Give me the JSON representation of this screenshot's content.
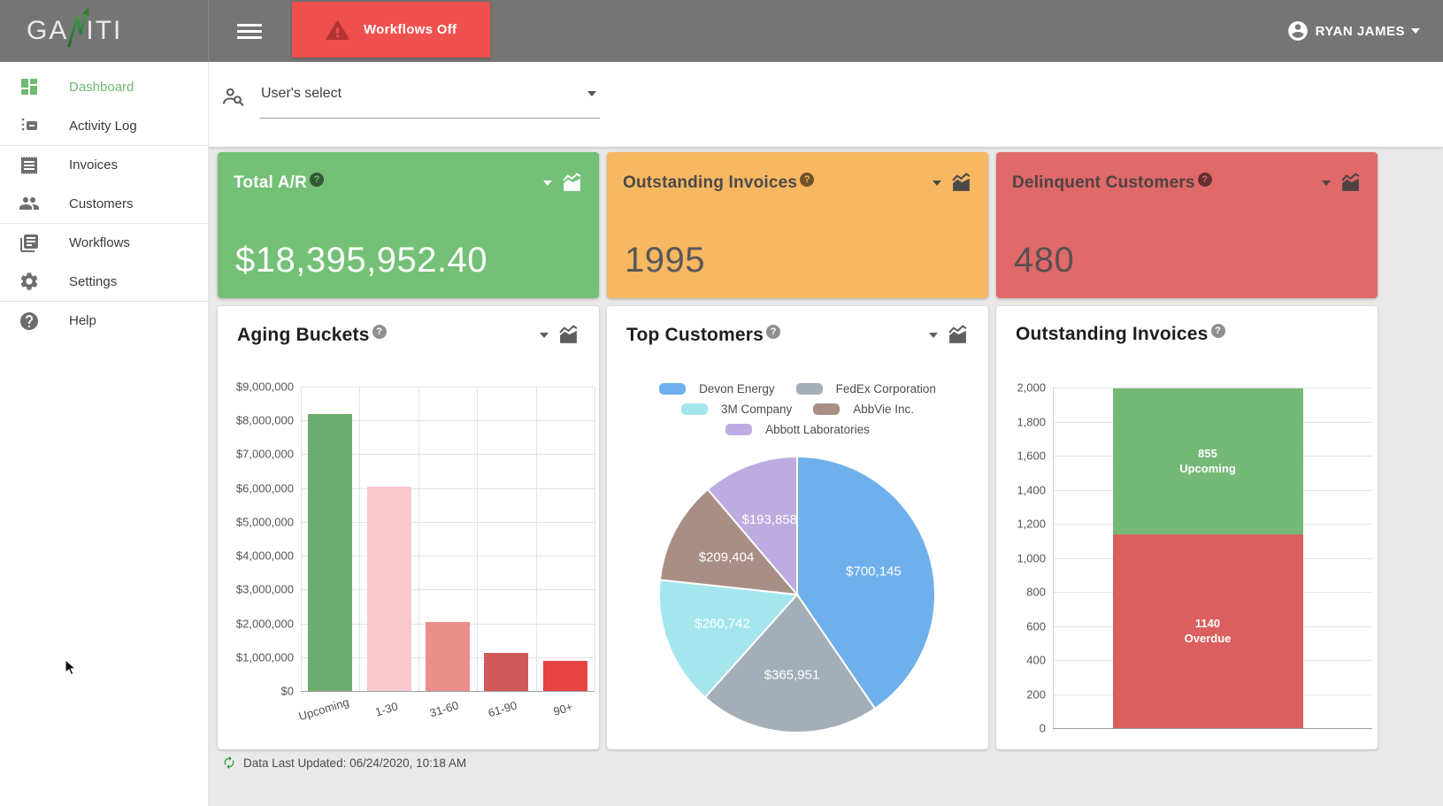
{
  "topbar": {
    "logo": {
      "left": "GA",
      "right": "ITI"
    },
    "workflows_label": "Workflows Off",
    "user_name": "RYAN JAMES"
  },
  "sidebar": {
    "active_color": "#6fbb72",
    "items": [
      {
        "label": "Dashboard",
        "icon": "dashboard-icon",
        "active": true,
        "divider_above": false
      },
      {
        "label": "Activity Log",
        "icon": "activity-log-icon",
        "active": false,
        "divider_above": false
      },
      {
        "label": "Invoices",
        "icon": "invoices-icon",
        "active": false,
        "divider_above": true
      },
      {
        "label": "Customers",
        "icon": "customers-icon",
        "active": false,
        "divider_above": false
      },
      {
        "label": "Workflows",
        "icon": "workflows-icon",
        "active": false,
        "divider_above": true
      },
      {
        "label": "Settings",
        "icon": "settings-icon",
        "active": false,
        "divider_above": false
      },
      {
        "label": "Help",
        "icon": "help-icon",
        "active": false,
        "divider_above": true
      }
    ]
  },
  "filters": {
    "user_select_label": "User's select"
  },
  "kpis": [
    {
      "title": "Total A/R",
      "value": "$18,395,952.40",
      "bg": "#73c076",
      "title_color": "#ffffff",
      "value_color": "#ffffff",
      "icon_color": "#ffffff"
    },
    {
      "title": "Outstanding Invoices",
      "value": "1995",
      "bg": "#f8b761",
      "title_color": "#4a4a4a",
      "value_color": "#585858",
      "icon_color": "#4a4a4a"
    },
    {
      "title": "Delinquent Customers",
      "value": "480",
      "bg": "#e0696a",
      "title_color": "#4f4342",
      "value_color": "#5a4f4e",
      "icon_color": "#4f4342"
    }
  ],
  "footer": {
    "last_updated": "Data Last Updated: 06/24/2020, 10:18 AM"
  },
  "chart_data": [
    {
      "type": "bar",
      "title": "Aging Buckets",
      "categories": [
        "Upcoming",
        "1-30",
        "31-60",
        "61-90",
        "90+"
      ],
      "values": [
        8200000,
        6050000,
        2050000,
        1130000,
        880000
      ],
      "bar_colors": [
        "#6cac6e",
        "#f9c9cf",
        "#e98e8b",
        "#d05a59",
        "#e54442"
      ],
      "ylim": [
        0,
        9000000
      ],
      "ytick_step": 1000000,
      "ytick_prefix": "$",
      "grid": true,
      "has_menu_icons": true
    },
    {
      "type": "pie",
      "title": "Top Customers",
      "legend_position": "top",
      "has_menu_icons": true,
      "series": [
        {
          "name": "Devon Energy",
          "value": 700145,
          "label": "$700,145",
          "color": "#6fb0ec"
        },
        {
          "name": "FedEx Corporation",
          "value": 365951,
          "label": "$365,951",
          "color": "#a3aeb9"
        },
        {
          "name": "3M Company",
          "value": 260742,
          "label": "$260,742",
          "color": "#a5e6ee"
        },
        {
          "name": "AbbVie Inc.",
          "value": 209404,
          "label": "$209,404",
          "color": "#a88e84"
        },
        {
          "name": "Abbott Laboratories",
          "value": 193858,
          "label": "$193,858",
          "color": "#bdacdf"
        }
      ]
    },
    {
      "type": "stacked-bar",
      "title": "Outstanding Invoices",
      "has_menu_icons": false,
      "ylim": [
        0,
        2000
      ],
      "ytick_step": 200,
      "grid": true,
      "series": [
        {
          "name": "Upcoming",
          "value": 855,
          "color": "#75b977"
        },
        {
          "name": "Overdue",
          "value": 1140,
          "color": "#da5f5e"
        }
      ]
    }
  ]
}
